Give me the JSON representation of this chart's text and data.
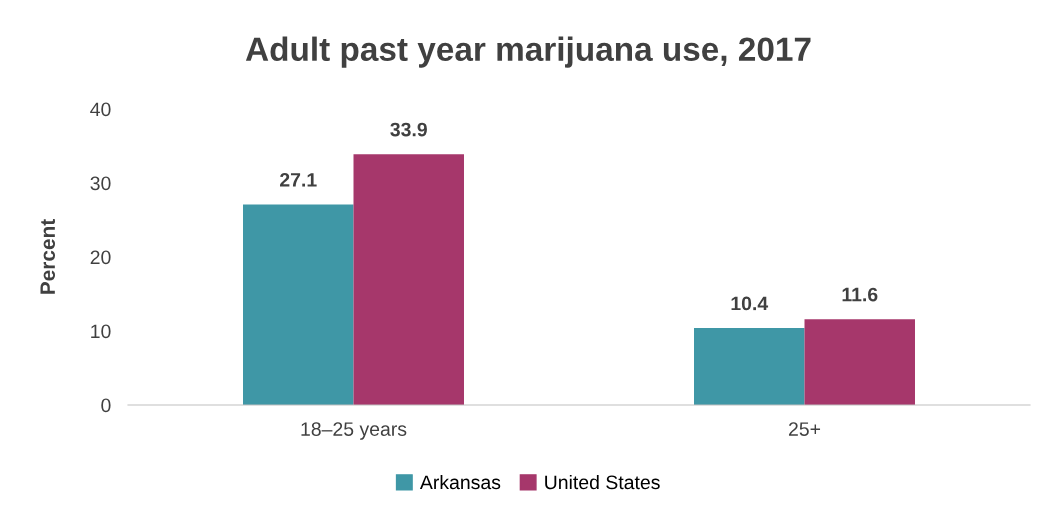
{
  "chart_data": {
    "type": "bar",
    "title": "Adult past year marijuana use, 2017",
    "ylabel": "Percent",
    "categories": [
      "18–25 years",
      "25+"
    ],
    "series": [
      {
        "name": "Arkansas",
        "color": "#3f97a6",
        "values": [
          27.1,
          10.4
        ]
      },
      {
        "name": "United States",
        "color": "#a6376b",
        "values": [
          33.9,
          11.6
        ]
      }
    ],
    "ylim": [
      0,
      40
    ],
    "yticks": [
      0,
      10,
      20,
      30,
      40
    ],
    "grid": false,
    "legend": "bottom",
    "data_labels": true
  }
}
